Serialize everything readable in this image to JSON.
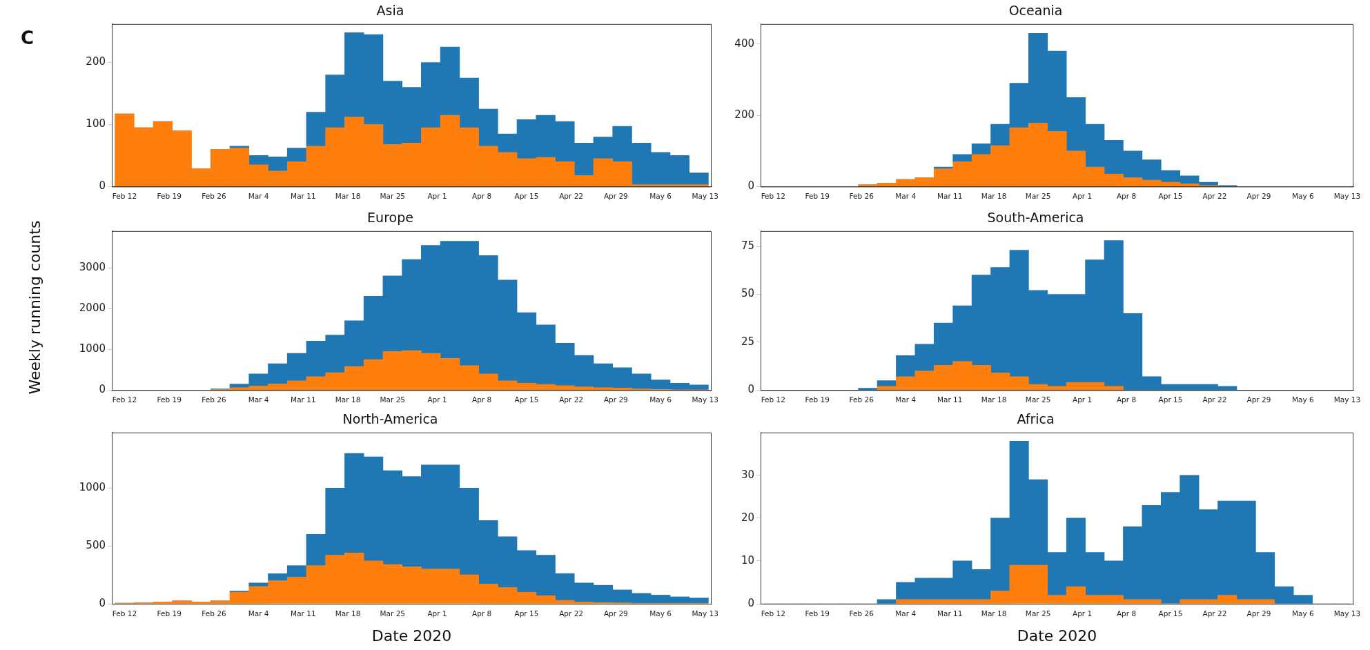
{
  "chart_data": [
    {
      "type": "bar",
      "title": "Asia",
      "annotations": [
        "C"
      ],
      "stacked": true,
      "x": [
        "2020-02-12",
        "2020-02-15",
        "2020-02-18",
        "2020-02-21",
        "2020-02-24",
        "2020-02-27",
        "2020-03-01",
        "2020-03-04",
        "2020-03-07",
        "2020-03-10",
        "2020-03-13",
        "2020-03-16",
        "2020-03-19",
        "2020-03-22",
        "2020-03-25",
        "2020-03-28",
        "2020-03-31",
        "2020-04-03",
        "2020-04-06",
        "2020-04-09",
        "2020-04-12",
        "2020-04-15",
        "2020-04-18",
        "2020-04-21",
        "2020-04-24",
        "2020-04-27",
        "2020-04-30",
        "2020-05-03",
        "2020-05-06",
        "2020-05-09",
        "2020-05-12"
      ],
      "xlim": [
        "2020-02-10",
        "2020-05-14"
      ],
      "xticks": [
        {
          "value": "2020-02-12",
          "label": "Feb 12"
        },
        {
          "value": "2020-02-19",
          "label": "Feb 19"
        },
        {
          "value": "2020-02-26",
          "label": "Feb 26"
        },
        {
          "value": "2020-03-04",
          "label": "Mar 4"
        },
        {
          "value": "2020-03-11",
          "label": "Mar 11"
        },
        {
          "value": "2020-03-18",
          "label": "Mar 18"
        },
        {
          "value": "2020-03-25",
          "label": "Mar 25"
        },
        {
          "value": "2020-04-01",
          "label": "Apr 1"
        },
        {
          "value": "2020-04-08",
          "label": "Apr 8"
        },
        {
          "value": "2020-04-15",
          "label": "Apr 15"
        },
        {
          "value": "2020-04-22",
          "label": "Apr 22"
        },
        {
          "value": "2020-04-29",
          "label": "Apr 29"
        },
        {
          "value": "2020-05-06",
          "label": "May 6"
        },
        {
          "value": "2020-05-13",
          "label": "May 13"
        }
      ],
      "ylim": [
        0,
        262
      ],
      "yticks": [
        0,
        100,
        200
      ],
      "series": [
        {
          "color": "#ff7f0e",
          "values": [
            117,
            95,
            105,
            90,
            29,
            60,
            62,
            35,
            25,
            40,
            65,
            95,
            112,
            100,
            68,
            70,
            95,
            115,
            95,
            65,
            55,
            45,
            47,
            40,
            18,
            45,
            40,
            3,
            3,
            3,
            3
          ]
        },
        {
          "color": "#1f77b4",
          "values": [
            0,
            0,
            0,
            0,
            0,
            0,
            3,
            15,
            23,
            22,
            55,
            85,
            136,
            145,
            102,
            90,
            105,
            110,
            80,
            60,
            30,
            63,
            68,
            65,
            52,
            35,
            57,
            67,
            52,
            47,
            19
          ]
        }
      ]
    },
    {
      "type": "bar",
      "title": "Oceania",
      "stacked": true,
      "x": [
        "2020-02-12",
        "2020-02-15",
        "2020-02-18",
        "2020-02-21",
        "2020-02-24",
        "2020-02-27",
        "2020-03-01",
        "2020-03-04",
        "2020-03-07",
        "2020-03-10",
        "2020-03-13",
        "2020-03-16",
        "2020-03-19",
        "2020-03-22",
        "2020-03-25",
        "2020-03-28",
        "2020-03-31",
        "2020-04-03",
        "2020-04-06",
        "2020-04-09",
        "2020-04-12",
        "2020-04-15",
        "2020-04-18",
        "2020-04-21",
        "2020-04-24",
        "2020-04-27",
        "2020-04-30",
        "2020-05-03",
        "2020-05-06",
        "2020-05-09",
        "2020-05-12"
      ],
      "xlim": [
        "2020-02-10",
        "2020-05-14"
      ],
      "xticks": [
        {
          "value": "2020-02-12",
          "label": "Feb 12"
        },
        {
          "value": "2020-02-19",
          "label": "Feb 19"
        },
        {
          "value": "2020-02-26",
          "label": "Feb 26"
        },
        {
          "value": "2020-03-04",
          "label": "Mar 4"
        },
        {
          "value": "2020-03-11",
          "label": "Mar 11"
        },
        {
          "value": "2020-03-18",
          "label": "Mar 18"
        },
        {
          "value": "2020-03-25",
          "label": "Mar 25"
        },
        {
          "value": "2020-04-01",
          "label": "Apr 1"
        },
        {
          "value": "2020-04-08",
          "label": "Apr 8"
        },
        {
          "value": "2020-04-15",
          "label": "Apr 15"
        },
        {
          "value": "2020-04-22",
          "label": "Apr 22"
        },
        {
          "value": "2020-04-29",
          "label": "Apr 29"
        },
        {
          "value": "2020-05-06",
          "label": "May 6"
        },
        {
          "value": "2020-05-13",
          "label": "May 13"
        }
      ],
      "ylim": [
        0,
        456
      ],
      "yticks": [
        0,
        200,
        400
      ],
      "series": [
        {
          "color": "#ff7f0e",
          "values": [
            0,
            0,
            0,
            0,
            0,
            5,
            10,
            20,
            25,
            50,
            70,
            90,
            115,
            165,
            178,
            155,
            100,
            55,
            35,
            25,
            18,
            12,
            8,
            3,
            0,
            0,
            0,
            0,
            0,
            0,
            0
          ]
        },
        {
          "color": "#1f77b4",
          "values": [
            0,
            0,
            0,
            0,
            0,
            0,
            0,
            0,
            0,
            5,
            20,
            30,
            60,
            125,
            252,
            225,
            150,
            120,
            95,
            75,
            57,
            33,
            22,
            9,
            3,
            0,
            0,
            0,
            0,
            0,
            0
          ]
        }
      ]
    },
    {
      "type": "bar",
      "title": "Europe",
      "ylabel": "Weekly running counts",
      "stacked": true,
      "x": [
        "2020-02-12",
        "2020-02-15",
        "2020-02-18",
        "2020-02-21",
        "2020-02-24",
        "2020-02-27",
        "2020-03-01",
        "2020-03-04",
        "2020-03-07",
        "2020-03-10",
        "2020-03-13",
        "2020-03-16",
        "2020-03-19",
        "2020-03-22",
        "2020-03-25",
        "2020-03-28",
        "2020-03-31",
        "2020-04-03",
        "2020-04-06",
        "2020-04-09",
        "2020-04-12",
        "2020-04-15",
        "2020-04-18",
        "2020-04-21",
        "2020-04-24",
        "2020-04-27",
        "2020-04-30",
        "2020-05-03",
        "2020-05-06",
        "2020-05-09",
        "2020-05-12"
      ],
      "xlim": [
        "2020-02-10",
        "2020-05-14"
      ],
      "xticks": [
        {
          "value": "2020-02-12",
          "label": "Feb 12"
        },
        {
          "value": "2020-02-19",
          "label": "Feb 19"
        },
        {
          "value": "2020-02-26",
          "label": "Feb 26"
        },
        {
          "value": "2020-03-04",
          "label": "Mar 4"
        },
        {
          "value": "2020-03-11",
          "label": "Mar 11"
        },
        {
          "value": "2020-03-18",
          "label": "Mar 18"
        },
        {
          "value": "2020-03-25",
          "label": "Mar 25"
        },
        {
          "value": "2020-04-01",
          "label": "Apr 1"
        },
        {
          "value": "2020-04-08",
          "label": "Apr 8"
        },
        {
          "value": "2020-04-15",
          "label": "Apr 15"
        },
        {
          "value": "2020-04-22",
          "label": "Apr 22"
        },
        {
          "value": "2020-04-29",
          "label": "Apr 29"
        },
        {
          "value": "2020-05-06",
          "label": "May 6"
        },
        {
          "value": "2020-05-13",
          "label": "May 13"
        }
      ],
      "ylim": [
        0,
        3900
      ],
      "yticks": [
        0,
        1000,
        2000,
        3000
      ],
      "series": [
        {
          "color": "#ff7f0e",
          "values": [
            0,
            0,
            0,
            0,
            0,
            20,
            60,
            100,
            150,
            230,
            330,
            430,
            580,
            750,
            950,
            970,
            900,
            780,
            600,
            400,
            230,
            170,
            140,
            110,
            80,
            60,
            50,
            30,
            20,
            10,
            10
          ]
        },
        {
          "color": "#1f77b4",
          "values": [
            0,
            0,
            0,
            0,
            0,
            10,
            90,
            300,
            500,
            670,
            870,
            920,
            1120,
            1550,
            1850,
            2230,
            2650,
            2870,
            3050,
            2900,
            2470,
            1730,
            1460,
            1040,
            770,
            590,
            500,
            370,
            230,
            160,
            120
          ]
        }
      ]
    },
    {
      "type": "bar",
      "title": "South-America",
      "stacked": true,
      "x": [
        "2020-02-12",
        "2020-02-15",
        "2020-02-18",
        "2020-02-21",
        "2020-02-24",
        "2020-02-27",
        "2020-03-01",
        "2020-03-04",
        "2020-03-07",
        "2020-03-10",
        "2020-03-13",
        "2020-03-16",
        "2020-03-19",
        "2020-03-22",
        "2020-03-25",
        "2020-03-28",
        "2020-03-31",
        "2020-04-03",
        "2020-04-06",
        "2020-04-09",
        "2020-04-12",
        "2020-04-15",
        "2020-04-18",
        "2020-04-21",
        "2020-04-24",
        "2020-04-27",
        "2020-04-30",
        "2020-05-03",
        "2020-05-06",
        "2020-05-09",
        "2020-05-12"
      ],
      "xlim": [
        "2020-02-10",
        "2020-05-14"
      ],
      "xticks": [
        {
          "value": "2020-02-12",
          "label": "Feb 12"
        },
        {
          "value": "2020-02-19",
          "label": "Feb 19"
        },
        {
          "value": "2020-02-26",
          "label": "Feb 26"
        },
        {
          "value": "2020-03-04",
          "label": "Mar 4"
        },
        {
          "value": "2020-03-11",
          "label": "Mar 11"
        },
        {
          "value": "2020-03-18",
          "label": "Mar 18"
        },
        {
          "value": "2020-03-25",
          "label": "Mar 25"
        },
        {
          "value": "2020-04-01",
          "label": "Apr 1"
        },
        {
          "value": "2020-04-08",
          "label": "Apr 8"
        },
        {
          "value": "2020-04-15",
          "label": "Apr 15"
        },
        {
          "value": "2020-04-22",
          "label": "Apr 22"
        },
        {
          "value": "2020-04-29",
          "label": "Apr 29"
        },
        {
          "value": "2020-05-06",
          "label": "May 6"
        },
        {
          "value": "2020-05-13",
          "label": "May 13"
        }
      ],
      "ylim": [
        0,
        83
      ],
      "yticks": [
        0,
        25,
        50,
        75
      ],
      "series": [
        {
          "color": "#ff7f0e",
          "values": [
            null,
            null,
            null,
            null,
            null,
            null,
            2,
            7,
            10,
            13,
            15,
            13,
            9,
            7,
            3,
            2,
            4,
            4,
            2,
            null,
            null,
            null,
            null,
            null,
            null,
            null,
            null,
            null,
            null,
            null,
            null
          ]
        },
        {
          "color": "#1f77b4",
          "values": [
            0,
            0,
            0,
            0,
            0,
            1,
            3,
            11,
            14,
            22,
            29,
            47,
            55,
            66,
            49,
            48,
            46,
            64,
            76,
            40,
            7,
            3,
            3,
            3,
            2,
            0,
            0,
            0,
            0,
            0,
            0
          ]
        }
      ]
    },
    {
      "type": "bar",
      "title": "North-America",
      "xlabel": "Date 2020",
      "stacked": true,
      "x": [
        "2020-02-12",
        "2020-02-15",
        "2020-02-18",
        "2020-02-21",
        "2020-02-24",
        "2020-02-27",
        "2020-03-01",
        "2020-03-04",
        "2020-03-07",
        "2020-03-10",
        "2020-03-13",
        "2020-03-16",
        "2020-03-19",
        "2020-03-22",
        "2020-03-25",
        "2020-03-28",
        "2020-03-31",
        "2020-04-03",
        "2020-04-06",
        "2020-04-09",
        "2020-04-12",
        "2020-04-15",
        "2020-04-18",
        "2020-04-21",
        "2020-04-24",
        "2020-04-27",
        "2020-04-30",
        "2020-05-03",
        "2020-05-06",
        "2020-05-09",
        "2020-05-12"
      ],
      "xlim": [
        "2020-02-10",
        "2020-05-14"
      ],
      "xticks": [
        {
          "value": "2020-02-12",
          "label": "Feb 12"
        },
        {
          "value": "2020-02-19",
          "label": "Feb 19"
        },
        {
          "value": "2020-02-26",
          "label": "Feb 26"
        },
        {
          "value": "2020-03-04",
          "label": "Mar 4"
        },
        {
          "value": "2020-03-11",
          "label": "Mar 11"
        },
        {
          "value": "2020-03-18",
          "label": "Mar 18"
        },
        {
          "value": "2020-03-25",
          "label": "Mar 25"
        },
        {
          "value": "2020-04-01",
          "label": "Apr 1"
        },
        {
          "value": "2020-04-08",
          "label": "Apr 8"
        },
        {
          "value": "2020-04-15",
          "label": "Apr 15"
        },
        {
          "value": "2020-04-22",
          "label": "Apr 22"
        },
        {
          "value": "2020-04-29",
          "label": "Apr 29"
        },
        {
          "value": "2020-05-06",
          "label": "May 6"
        },
        {
          "value": "2020-05-13",
          "label": "May 13"
        }
      ],
      "ylim": [
        0,
        1480
      ],
      "yticks": [
        0,
        500,
        1000
      ],
      "series": [
        {
          "color": "#ff7f0e",
          "values": [
            5,
            8,
            15,
            25,
            15,
            25,
            100,
            150,
            200,
            230,
            330,
            420,
            440,
            370,
            340,
            320,
            300,
            300,
            250,
            170,
            140,
            100,
            70,
            30,
            15,
            10,
            8,
            5,
            5,
            5,
            5
          ]
        },
        {
          "color": "#1f77b4",
          "values": [
            0,
            0,
            0,
            0,
            0,
            0,
            10,
            30,
            60,
            100,
            270,
            580,
            860,
            900,
            810,
            780,
            900,
            900,
            750,
            550,
            440,
            360,
            350,
            230,
            165,
            150,
            112,
            85,
            70,
            55,
            45
          ]
        }
      ]
    },
    {
      "type": "bar",
      "title": "Africa",
      "xlabel": "Date 2020",
      "stacked": true,
      "x": [
        "2020-02-12",
        "2020-02-15",
        "2020-02-18",
        "2020-02-21",
        "2020-02-24",
        "2020-02-27",
        "2020-03-01",
        "2020-03-04",
        "2020-03-07",
        "2020-03-10",
        "2020-03-13",
        "2020-03-16",
        "2020-03-19",
        "2020-03-22",
        "2020-03-25",
        "2020-03-28",
        "2020-03-31",
        "2020-04-03",
        "2020-04-06",
        "2020-04-09",
        "2020-04-12",
        "2020-04-15",
        "2020-04-18",
        "2020-04-21",
        "2020-04-24",
        "2020-04-27",
        "2020-04-30",
        "2020-05-03",
        "2020-05-06",
        "2020-05-09",
        "2020-05-12"
      ],
      "xlim": [
        "2020-02-10",
        "2020-05-14"
      ],
      "xticks": [
        {
          "value": "2020-02-12",
          "label": "Feb 12"
        },
        {
          "value": "2020-02-19",
          "label": "Feb 19"
        },
        {
          "value": "2020-02-26",
          "label": "Feb 26"
        },
        {
          "value": "2020-03-04",
          "label": "Mar 4"
        },
        {
          "value": "2020-03-11",
          "label": "Mar 11"
        },
        {
          "value": "2020-03-18",
          "label": "Mar 18"
        },
        {
          "value": "2020-03-25",
          "label": "Mar 25"
        },
        {
          "value": "2020-04-01",
          "label": "Apr 1"
        },
        {
          "value": "2020-04-08",
          "label": "Apr 8"
        },
        {
          "value": "2020-04-15",
          "label": "Apr 15"
        },
        {
          "value": "2020-04-22",
          "label": "Apr 22"
        },
        {
          "value": "2020-04-29",
          "label": "Apr 29"
        },
        {
          "value": "2020-05-06",
          "label": "May 6"
        },
        {
          "value": "2020-05-13",
          "label": "May 13"
        }
      ],
      "ylim": [
        0,
        40
      ],
      "yticks": [
        0,
        10,
        20,
        30
      ],
      "series": [
        {
          "color": "#ff7f0e",
          "values": [
            null,
            null,
            null,
            null,
            null,
            null,
            null,
            1,
            1,
            1,
            1,
            1,
            3,
            9,
            9,
            2,
            4,
            2,
            2,
            1,
            1,
            0,
            1,
            1,
            2,
            1,
            1,
            null,
            null,
            null,
            null
          ]
        },
        {
          "color": "#1f77b4",
          "values": [
            0,
            0,
            0,
            0,
            0,
            0,
            1,
            4,
            5,
            5,
            9,
            7,
            17,
            29,
            20,
            10,
            16,
            10,
            8,
            17,
            22,
            26,
            29,
            21,
            22,
            23,
            11,
            4,
            2,
            0,
            0
          ]
        }
      ]
    }
  ]
}
